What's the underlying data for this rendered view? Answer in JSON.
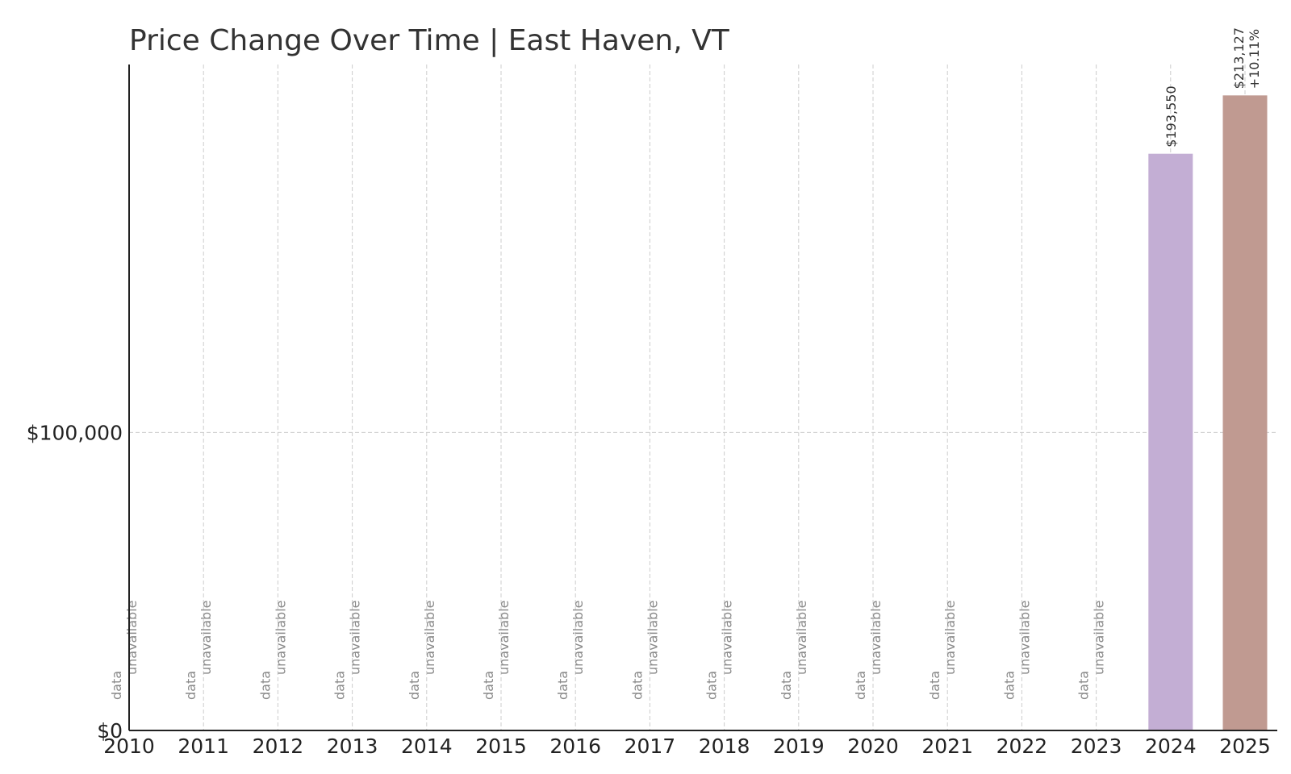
{
  "chart_data": {
    "type": "bar",
    "title": "Price Change Over Time | East Haven, VT",
    "xlabel": "",
    "ylabel": "",
    "categories": [
      "2010",
      "2011",
      "2012",
      "2013",
      "2014",
      "2015",
      "2016",
      "2017",
      "2018",
      "2019",
      "2020",
      "2021",
      "2022",
      "2023",
      "2024",
      "2025"
    ],
    "values": [
      null,
      null,
      null,
      null,
      null,
      null,
      null,
      null,
      null,
      null,
      null,
      null,
      null,
      null,
      193550,
      213127
    ],
    "value_labels": [
      "",
      "",
      "",
      "",
      "",
      "",
      "",
      "",
      "",
      "",
      "",
      "",
      "",
      "",
      "$193,550",
      "$213,127"
    ],
    "change_labels": [
      "",
      "",
      "",
      "",
      "",
      "",
      "",
      "",
      "",
      "",
      "",
      "",
      "",
      "",
      "",
      "+10.11%"
    ],
    "missing_label": [
      "data",
      "unavailable"
    ],
    "bar_colors": {
      "2024": "#c3aed4",
      "2025": "#c09a91"
    },
    "yticks": [
      0,
      100000
    ],
    "ytick_labels": [
      "$0",
      "$100,000"
    ],
    "ylim": [
      0,
      223500
    ],
    "grid": true
  }
}
